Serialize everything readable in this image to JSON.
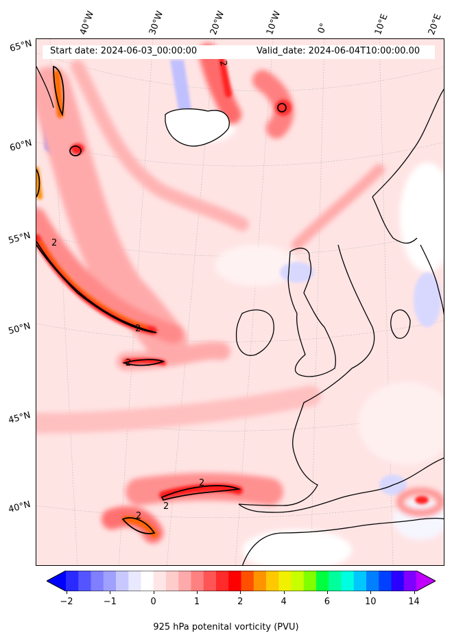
{
  "header": {
    "start_date": "Start date: 2024-06-03_00:00:00",
    "valid_date": "Valid_date: 2024-06-04T10:00:00.00"
  },
  "longitude_labels": [
    "40°W",
    "30°W",
    "20°W",
    "10°W",
    "0°",
    "10°E",
    "20°E"
  ],
  "latitude_labels": [
    "65°N",
    "60°N",
    "55°N",
    "50°N",
    "45°N",
    "40°N"
  ],
  "contour_label": "2",
  "colorbar": {
    "label": "925 hPa potenital vorticity (PVU)",
    "ticks": [
      "−2",
      "−1",
      "0",
      "1",
      "2",
      "4",
      "6",
      "10",
      "14"
    ],
    "colors": [
      "#0000ff",
      "#2a2aff",
      "#5555ff",
      "#7f7fff",
      "#a0a0ff",
      "#c8c8ff",
      "#e8e8ff",
      "#ffffff",
      "#ffe5e5",
      "#ffcccc",
      "#ffaaaa",
      "#ff8080",
      "#ff5555",
      "#ff2a2a",
      "#ff0000",
      "#ff5000",
      "#ff9400",
      "#ffc800",
      "#f0f000",
      "#c8ff00",
      "#80ff00",
      "#00ff40",
      "#00ff9c",
      "#00ffe0",
      "#00c8ff",
      "#0080ff",
      "#0040ff",
      "#2a00ff",
      "#8000ff",
      "#c000ff"
    ]
  }
}
